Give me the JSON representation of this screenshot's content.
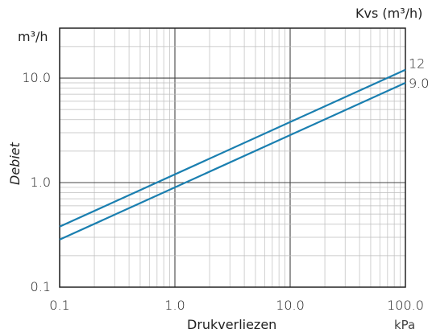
{
  "chart_data": {
    "type": "line",
    "x_scale": "log",
    "y_scale": "log",
    "xlim": [
      0.1,
      100
    ],
    "ylim": [
      0.1,
      30
    ],
    "x_ticks": [
      0.1,
      1,
      10,
      100
    ],
    "x_tick_labels": [
      "0.1",
      "1.0",
      "10.0",
      "100.0"
    ],
    "y_ticks": [
      0.1,
      1,
      10
    ],
    "y_tick_labels": [
      "0.1",
      "1.0",
      "10.0"
    ],
    "xlabel": "Drukverliezen",
    "x_unit": "kPa",
    "ylabel": "Debiet",
    "y_unit": "m³/h",
    "series_header": "Kvs (m³/h)",
    "grid": true,
    "line_color": "#1a7fb0",
    "series": [
      {
        "name": "12",
        "x": [
          0.1,
          100
        ],
        "y": [
          0.379,
          12.0
        ]
      },
      {
        "name": "9.0",
        "x": [
          0.1,
          100
        ],
        "y": [
          0.285,
          9.0
        ]
      }
    ]
  }
}
